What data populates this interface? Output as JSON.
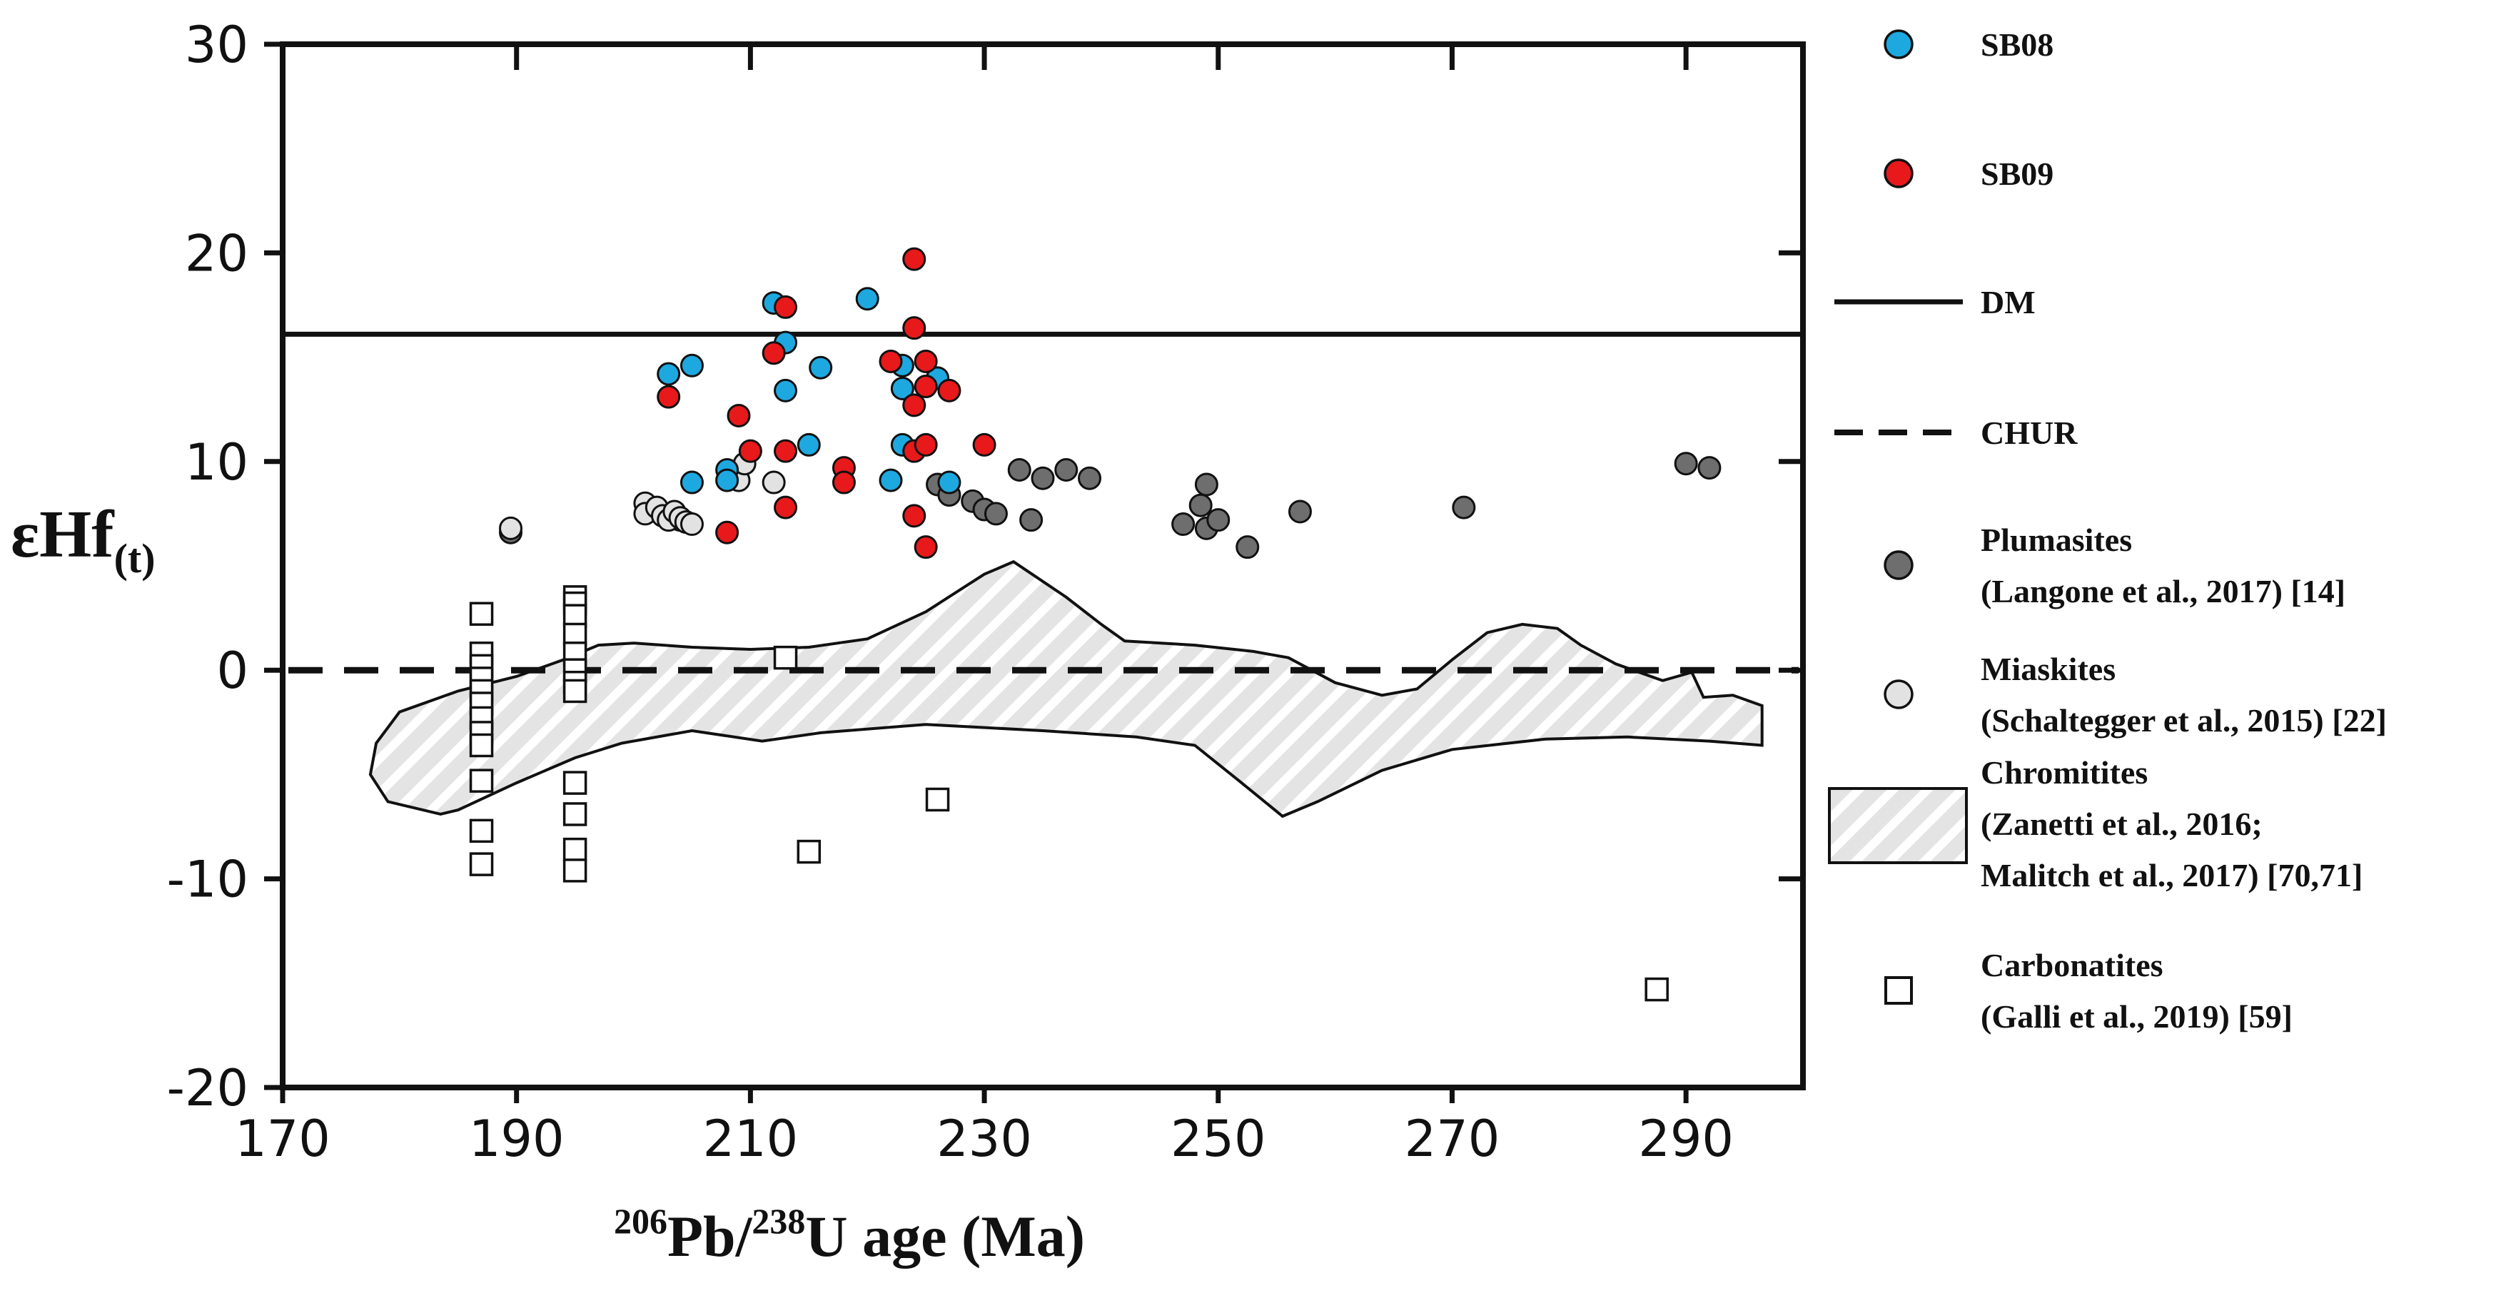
{
  "chart_data": {
    "type": "scatter",
    "title": "",
    "xlabel": {
      "sup1": "206",
      "t1": "Pb/",
      "sup2": "238",
      "t2": "U age (Ma)"
    },
    "ylabel": {
      "main": "εHf",
      "sub": "(t)"
    },
    "xlim": [
      170,
      300
    ],
    "ylim": [
      -20,
      30
    ],
    "xticks": [
      "170",
      "190",
      "210",
      "230",
      "250",
      "270",
      "290"
    ],
    "xtick_values": [
      170,
      190,
      210,
      230,
      250,
      270,
      290
    ],
    "yticks": [
      "30",
      "20",
      "10",
      "0",
      "-10",
      "-20"
    ],
    "ytick_values": [
      30,
      20,
      10,
      0,
      -10,
      -20
    ],
    "lines": {
      "DM": 16.1,
      "CHUR": 0
    },
    "colors": {
      "SB08": "#1ea8e0",
      "SB09": "#e8191b",
      "plumasites": "#6e6e6e",
      "miaskites": "#e2e2e2",
      "chromitites_fill": "#e4e4e4",
      "carbonatites": "#ffffff"
    },
    "legend": [
      {
        "key": "SB08",
        "lines": [
          "SB08"
        ]
      },
      {
        "key": "SB09",
        "lines": [
          "SB09"
        ]
      },
      {
        "key": "DM",
        "lines": [
          "DM"
        ]
      },
      {
        "key": "CHUR",
        "lines": [
          "CHUR"
        ]
      },
      {
        "key": "plumasites",
        "lines": [
          "Plumasites",
          "(Langone et al., 2017) [14]"
        ]
      },
      {
        "key": "miaskites",
        "lines": [
          "Miaskites",
          "(Schaltegger et al., 2015) [22]"
        ]
      },
      {
        "key": "chromitites",
        "lines": [
          "Chromitites",
          "(Zanetti et al., 2016;",
          "Malitch et al., 2017) [70,71]"
        ]
      },
      {
        "key": "carbonatites",
        "lines": [
          "Carbonatites",
          "(Galli et al., 2019) [59]"
        ]
      }
    ],
    "series": [
      {
        "name": "SB08",
        "marker": "circle",
        "points": [
          [
            203,
            14.2
          ],
          [
            205,
            14.6
          ],
          [
            205,
            9.0
          ],
          [
            208,
            9.6
          ],
          [
            208,
            9.1
          ],
          [
            212,
            17.6
          ],
          [
            213,
            15.7
          ],
          [
            213,
            13.4
          ],
          [
            215,
            10.8
          ],
          [
            216,
            14.5
          ],
          [
            220,
            17.8
          ],
          [
            222,
            9.1
          ],
          [
            223,
            14.6
          ],
          [
            223,
            13.5
          ],
          [
            223,
            10.8
          ],
          [
            226,
            14.0
          ],
          [
            227,
            9.0
          ]
        ]
      },
      {
        "name": "SB09",
        "marker": "circle",
        "points": [
          [
            203,
            13.1
          ],
          [
            208,
            6.6
          ],
          [
            209,
            12.2
          ],
          [
            210,
            10.5
          ],
          [
            212,
            15.2
          ],
          [
            213,
            17.4
          ],
          [
            213,
            10.5
          ],
          [
            213,
            7.8
          ],
          [
            218,
            9.7
          ],
          [
            218,
            9.0
          ],
          [
            222,
            14.8
          ],
          [
            224,
            19.7
          ],
          [
            224,
            16.4
          ],
          [
            224,
            12.7
          ],
          [
            224,
            10.5
          ],
          [
            224,
            7.4
          ],
          [
            225,
            14.8
          ],
          [
            225,
            13.6
          ],
          [
            225,
            10.8
          ],
          [
            225,
            5.9
          ],
          [
            227,
            13.4
          ],
          [
            230,
            10.8
          ]
        ]
      },
      {
        "name": "Plumasites",
        "marker": "circle",
        "points": [
          [
            189.5,
            6.6
          ],
          [
            203,
            7.3
          ],
          [
            204,
            7.2
          ],
          [
            226,
            8.9
          ],
          [
            227,
            8.4
          ],
          [
            229,
            8.1
          ],
          [
            230,
            7.7
          ],
          [
            231,
            7.5
          ],
          [
            233,
            9.6
          ],
          [
            234,
            7.2
          ],
          [
            235,
            9.2
          ],
          [
            237,
            9.6
          ],
          [
            239,
            9.2
          ],
          [
            247,
            7.0
          ],
          [
            248.5,
            7.9
          ],
          [
            249,
            8.9
          ],
          [
            249,
            6.8
          ],
          [
            250,
            7.2
          ],
          [
            252.5,
            5.9
          ],
          [
            257,
            7.6
          ],
          [
            271,
            7.8
          ],
          [
            290,
            9.9
          ],
          [
            292,
            9.7
          ]
        ]
      },
      {
        "name": "Miaskites",
        "marker": "circle",
        "points": [
          [
            189.5,
            6.8
          ],
          [
            201,
            8.0
          ],
          [
            201,
            7.5
          ],
          [
            202,
            7.8
          ],
          [
            202.5,
            7.4
          ],
          [
            203,
            7.2
          ],
          [
            203.5,
            7.6
          ],
          [
            204,
            7.3
          ],
          [
            204.5,
            7.1
          ],
          [
            205,
            7.0
          ],
          [
            208.5,
            9.3
          ],
          [
            209,
            9.1
          ],
          [
            209.5,
            9.9
          ],
          [
            212,
            9.0
          ]
        ]
      },
      {
        "name": "Carbonatites",
        "marker": "square",
        "points": [
          [
            187,
            2.7
          ],
          [
            187,
            0.8
          ],
          [
            187,
            0.2
          ],
          [
            187,
            -0.4
          ],
          [
            187,
            -1.0
          ],
          [
            187,
            -1.6
          ],
          [
            187,
            -2.3
          ],
          [
            187,
            -3.0
          ],
          [
            187,
            -3.6
          ],
          [
            187,
            -5.3
          ],
          [
            187,
            -7.7
          ],
          [
            187,
            -9.3
          ],
          [
            195,
            3.5
          ],
          [
            195,
            3.2
          ],
          [
            195,
            2.6
          ],
          [
            195,
            1.7
          ],
          [
            195,
            0.8
          ],
          [
            195,
            0.0
          ],
          [
            195,
            -0.6
          ],
          [
            195,
            -1.0
          ],
          [
            195,
            -5.4
          ],
          [
            195,
            -6.9
          ],
          [
            195,
            -8.6
          ],
          [
            195,
            -9.6
          ],
          [
            213,
            0.6
          ],
          [
            215,
            -8.7
          ],
          [
            226,
            -6.2
          ],
          [
            287.5,
            -15.3
          ]
        ]
      }
    ],
    "chromitites_outline": [
      [
        177.5,
        -5.0
      ],
      [
        178,
        -3.5
      ],
      [
        180,
        -2.0
      ],
      [
        185,
        -1.0
      ],
      [
        190,
        -0.3
      ],
      [
        194,
        0.5
      ],
      [
        197,
        1.2
      ],
      [
        200,
        1.3
      ],
      [
        205,
        1.1
      ],
      [
        210,
        1.0
      ],
      [
        215,
        1.1
      ],
      [
        220,
        1.5
      ],
      [
        225,
        2.8
      ],
      [
        230,
        4.6
      ],
      [
        232.5,
        5.2
      ],
      [
        237,
        3.5
      ],
      [
        240,
        2.2
      ],
      [
        242,
        1.4
      ],
      [
        248,
        1.2
      ],
      [
        253,
        0.9
      ],
      [
        256,
        0.6
      ],
      [
        260,
        -0.6
      ],
      [
        264,
        -1.2
      ],
      [
        267,
        -0.9
      ],
      [
        270,
        0.5
      ],
      [
        273,
        1.8
      ],
      [
        276,
        2.2
      ],
      [
        279,
        2.0
      ],
      [
        281,
        1.2
      ],
      [
        284,
        0.3
      ],
      [
        288,
        -0.5
      ],
      [
        290.5,
        -0.1
      ],
      [
        291.5,
        -1.3
      ],
      [
        294,
        -1.2
      ],
      [
        296.5,
        -1.7
      ],
      [
        296.5,
        -3.6
      ],
      [
        292,
        -3.4
      ],
      [
        285,
        -3.2
      ],
      [
        278,
        -3.3
      ],
      [
        270,
        -3.8
      ],
      [
        264,
        -4.8
      ],
      [
        258.5,
        -6.3
      ],
      [
        255.5,
        -7.0
      ],
      [
        252,
        -5.4
      ],
      [
        248,
        -3.6
      ],
      [
        243,
        -3.2
      ],
      [
        235,
        -2.9
      ],
      [
        225,
        -2.6
      ],
      [
        216,
        -3.0
      ],
      [
        211,
        -3.4
      ],
      [
        205,
        -2.9
      ],
      [
        199,
        -3.5
      ],
      [
        195,
        -4.2
      ],
      [
        190,
        -5.4
      ],
      [
        185,
        -6.7
      ],
      [
        183.5,
        -6.9
      ],
      [
        179,
        -6.3
      ]
    ]
  }
}
